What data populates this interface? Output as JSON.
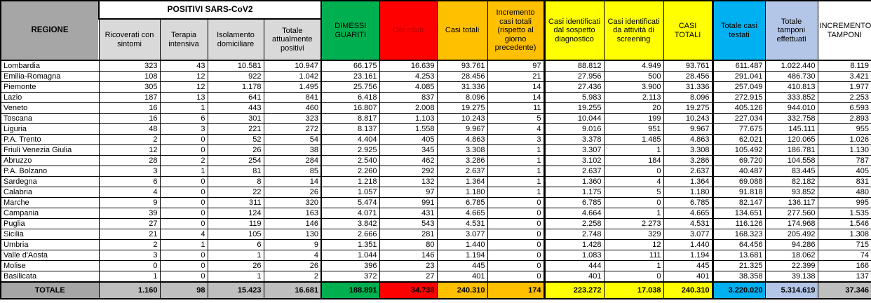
{
  "colors": {
    "green": "#00B050",
    "red": "#FF0000",
    "red_text": "#C00000",
    "orange": "#FFC000",
    "yellow": "#FFFF00",
    "cyan": "#00B0F0",
    "light_blue": "#B4C6E7",
    "gray_dark": "#A6A6A6",
    "gray_light": "#D9D9D9",
    "gray_total": "#BFBFBF"
  },
  "table": {
    "header": {
      "regione": "REGIONE",
      "positivi_group": "POSITIVI SARS-CoV2",
      "sub_columns": [
        "Ricoverati con sintomi",
        "Terapia intensiva",
        "Isolamento domiciliare",
        "Totale attualmente positivi"
      ],
      "columns": [
        "DIMESSI GUARITI",
        "Deceduti",
        "Casi totali",
        "Incremento casi totali (rispetto al giorno precedente)",
        "Casi identificati dal sospetto diagnostico",
        "Casi identificati da attività di screening",
        "CASI TOTALI",
        "Totale casi testati",
        "Totale tamponi effettuati",
        "INCREMENTO TAMPONI"
      ]
    },
    "rows": [
      {
        "regione": "Lombardia",
        "values": [
          "323",
          "43",
          "10.581",
          "10.947",
          "66.175",
          "16.639",
          "93.761",
          "97",
          "88.812",
          "4.949",
          "93.761",
          "611.487",
          "1.022.440",
          "8.119"
        ]
      },
      {
        "regione": "Emilia-Romagna",
        "values": [
          "108",
          "12",
          "922",
          "1.042",
          "23.161",
          "4.253",
          "28.456",
          "21",
          "27.956",
          "500",
          "28.456",
          "291.041",
          "486.730",
          "3.421"
        ]
      },
      {
        "regione": "Piemonte",
        "values": [
          "305",
          "12",
          "1.178",
          "1.495",
          "25.756",
          "4.085",
          "31.336",
          "14",
          "27.436",
          "3.900",
          "31.336",
          "257.049",
          "410.813",
          "1.977"
        ]
      },
      {
        "regione": "Lazio",
        "values": [
          "187",
          "13",
          "641",
          "841",
          "6.418",
          "837",
          "8.096",
          "14",
          "5.983",
          "2.113",
          "8.096",
          "272.915",
          "333.852",
          "2.253"
        ]
      },
      {
        "regione": "Veneto",
        "values": [
          "16",
          "1",
          "443",
          "460",
          "16.807",
          "2.008",
          "19.275",
          "11",
          "19.255",
          "20",
          "19.275",
          "405.126",
          "944.010",
          "6.593"
        ]
      },
      {
        "regione": "Toscana",
        "values": [
          "16",
          "6",
          "301",
          "323",
          "8.817",
          "1.103",
          "10.243",
          "5",
          "10.044",
          "199",
          "10.243",
          "227.034",
          "332.758",
          "2.893"
        ]
      },
      {
        "regione": "Liguria",
        "values": [
          "48",
          "3",
          "221",
          "272",
          "8.137",
          "1.558",
          "9.967",
          "4",
          "9.016",
          "951",
          "9.967",
          "77.675",
          "145.111",
          "955"
        ]
      },
      {
        "regione": "P.A. Trento",
        "values": [
          "2",
          "0",
          "52",
          "54",
          "4.404",
          "405",
          "4.863",
          "3",
          "3.378",
          "1.485",
          "4.863",
          "62.021",
          "120.065",
          "1.026"
        ]
      },
      {
        "regione": "Friuli Venezia Giulia",
        "values": [
          "12",
          "0",
          "26",
          "38",
          "2.925",
          "345",
          "3.308",
          "1",
          "3.307",
          "1",
          "3.308",
          "105.492",
          "186.781",
          "1.130"
        ]
      },
      {
        "regione": "Abruzzo",
        "values": [
          "28",
          "2",
          "254",
          "284",
          "2.540",
          "462",
          "3.286",
          "1",
          "3.102",
          "184",
          "3.286",
          "69.720",
          "104.558",
          "787"
        ]
      },
      {
        "regione": "P.A. Bolzano",
        "values": [
          "3",
          "1",
          "81",
          "85",
          "2.260",
          "292",
          "2.637",
          "1",
          "2.637",
          "0",
          "2.637",
          "40.487",
          "83.445",
          "405"
        ]
      },
      {
        "regione": "Sardegna",
        "values": [
          "6",
          "0",
          "8",
          "14",
          "1.218",
          "132",
          "1.364",
          "1",
          "1.360",
          "4",
          "1.364",
          "69.088",
          "82.182",
          "831"
        ]
      },
      {
        "regione": "Calabria",
        "values": [
          "4",
          "0",
          "22",
          "26",
          "1.057",
          "97",
          "1.180",
          "1",
          "1.175",
          "5",
          "1.180",
          "91.818",
          "93.852",
          "480"
        ]
      },
      {
        "regione": "Marche",
        "values": [
          "9",
          "0",
          "311",
          "320",
          "5.474",
          "991",
          "6.785",
          "0",
          "6.785",
          "0",
          "6.785",
          "82.147",
          "136.117",
          "995"
        ]
      },
      {
        "regione": "Campania",
        "values": [
          "39",
          "0",
          "124",
          "163",
          "4.071",
          "431",
          "4.665",
          "0",
          "4.664",
          "1",
          "4.665",
          "134.651",
          "277.560",
          "1.535"
        ]
      },
      {
        "regione": "Puglia",
        "values": [
          "27",
          "0",
          "119",
          "146",
          "3.842",
          "543",
          "4.531",
          "0",
          "2.258",
          "2.273",
          "4.531",
          "116.126",
          "174.968",
          "1.546"
        ]
      },
      {
        "regione": "Sicilia",
        "values": [
          "21",
          "4",
          "105",
          "130",
          "2.666",
          "281",
          "3.077",
          "0",
          "2.748",
          "329",
          "3.077",
          "168.323",
          "205.492",
          "1.308"
        ]
      },
      {
        "regione": "Umbria",
        "values": [
          "2",
          "1",
          "6",
          "9",
          "1.351",
          "80",
          "1.440",
          "0",
          "1.428",
          "12",
          "1.440",
          "64.456",
          "94.286",
          "715"
        ]
      },
      {
        "regione": "Valle d'Aosta",
        "values": [
          "3",
          "0",
          "1",
          "4",
          "1.044",
          "146",
          "1.194",
          "0",
          "1.083",
          "111",
          "1.194",
          "13.681",
          "18.062",
          "74"
        ]
      },
      {
        "regione": "Molise",
        "values": [
          "0",
          "0",
          "26",
          "26",
          "396",
          "23",
          "445",
          "0",
          "444",
          "1",
          "445",
          "21.325",
          "22.399",
          "166"
        ]
      },
      {
        "regione": "Basilicata",
        "values": [
          "1",
          "0",
          "1",
          "2",
          "372",
          "27",
          "401",
          "0",
          "401",
          "0",
          "401",
          "38.358",
          "39.138",
          "137"
        ]
      }
    ],
    "totale": {
      "label": "TOTALE",
      "values": [
        "1.160",
        "98",
        "15.423",
        "16.681",
        "188.891",
        "34.738",
        "240.310",
        "174",
        "223.272",
        "17.038",
        "240.310",
        "3.220.020",
        "5.314.619",
        "37.346"
      ]
    }
  }
}
